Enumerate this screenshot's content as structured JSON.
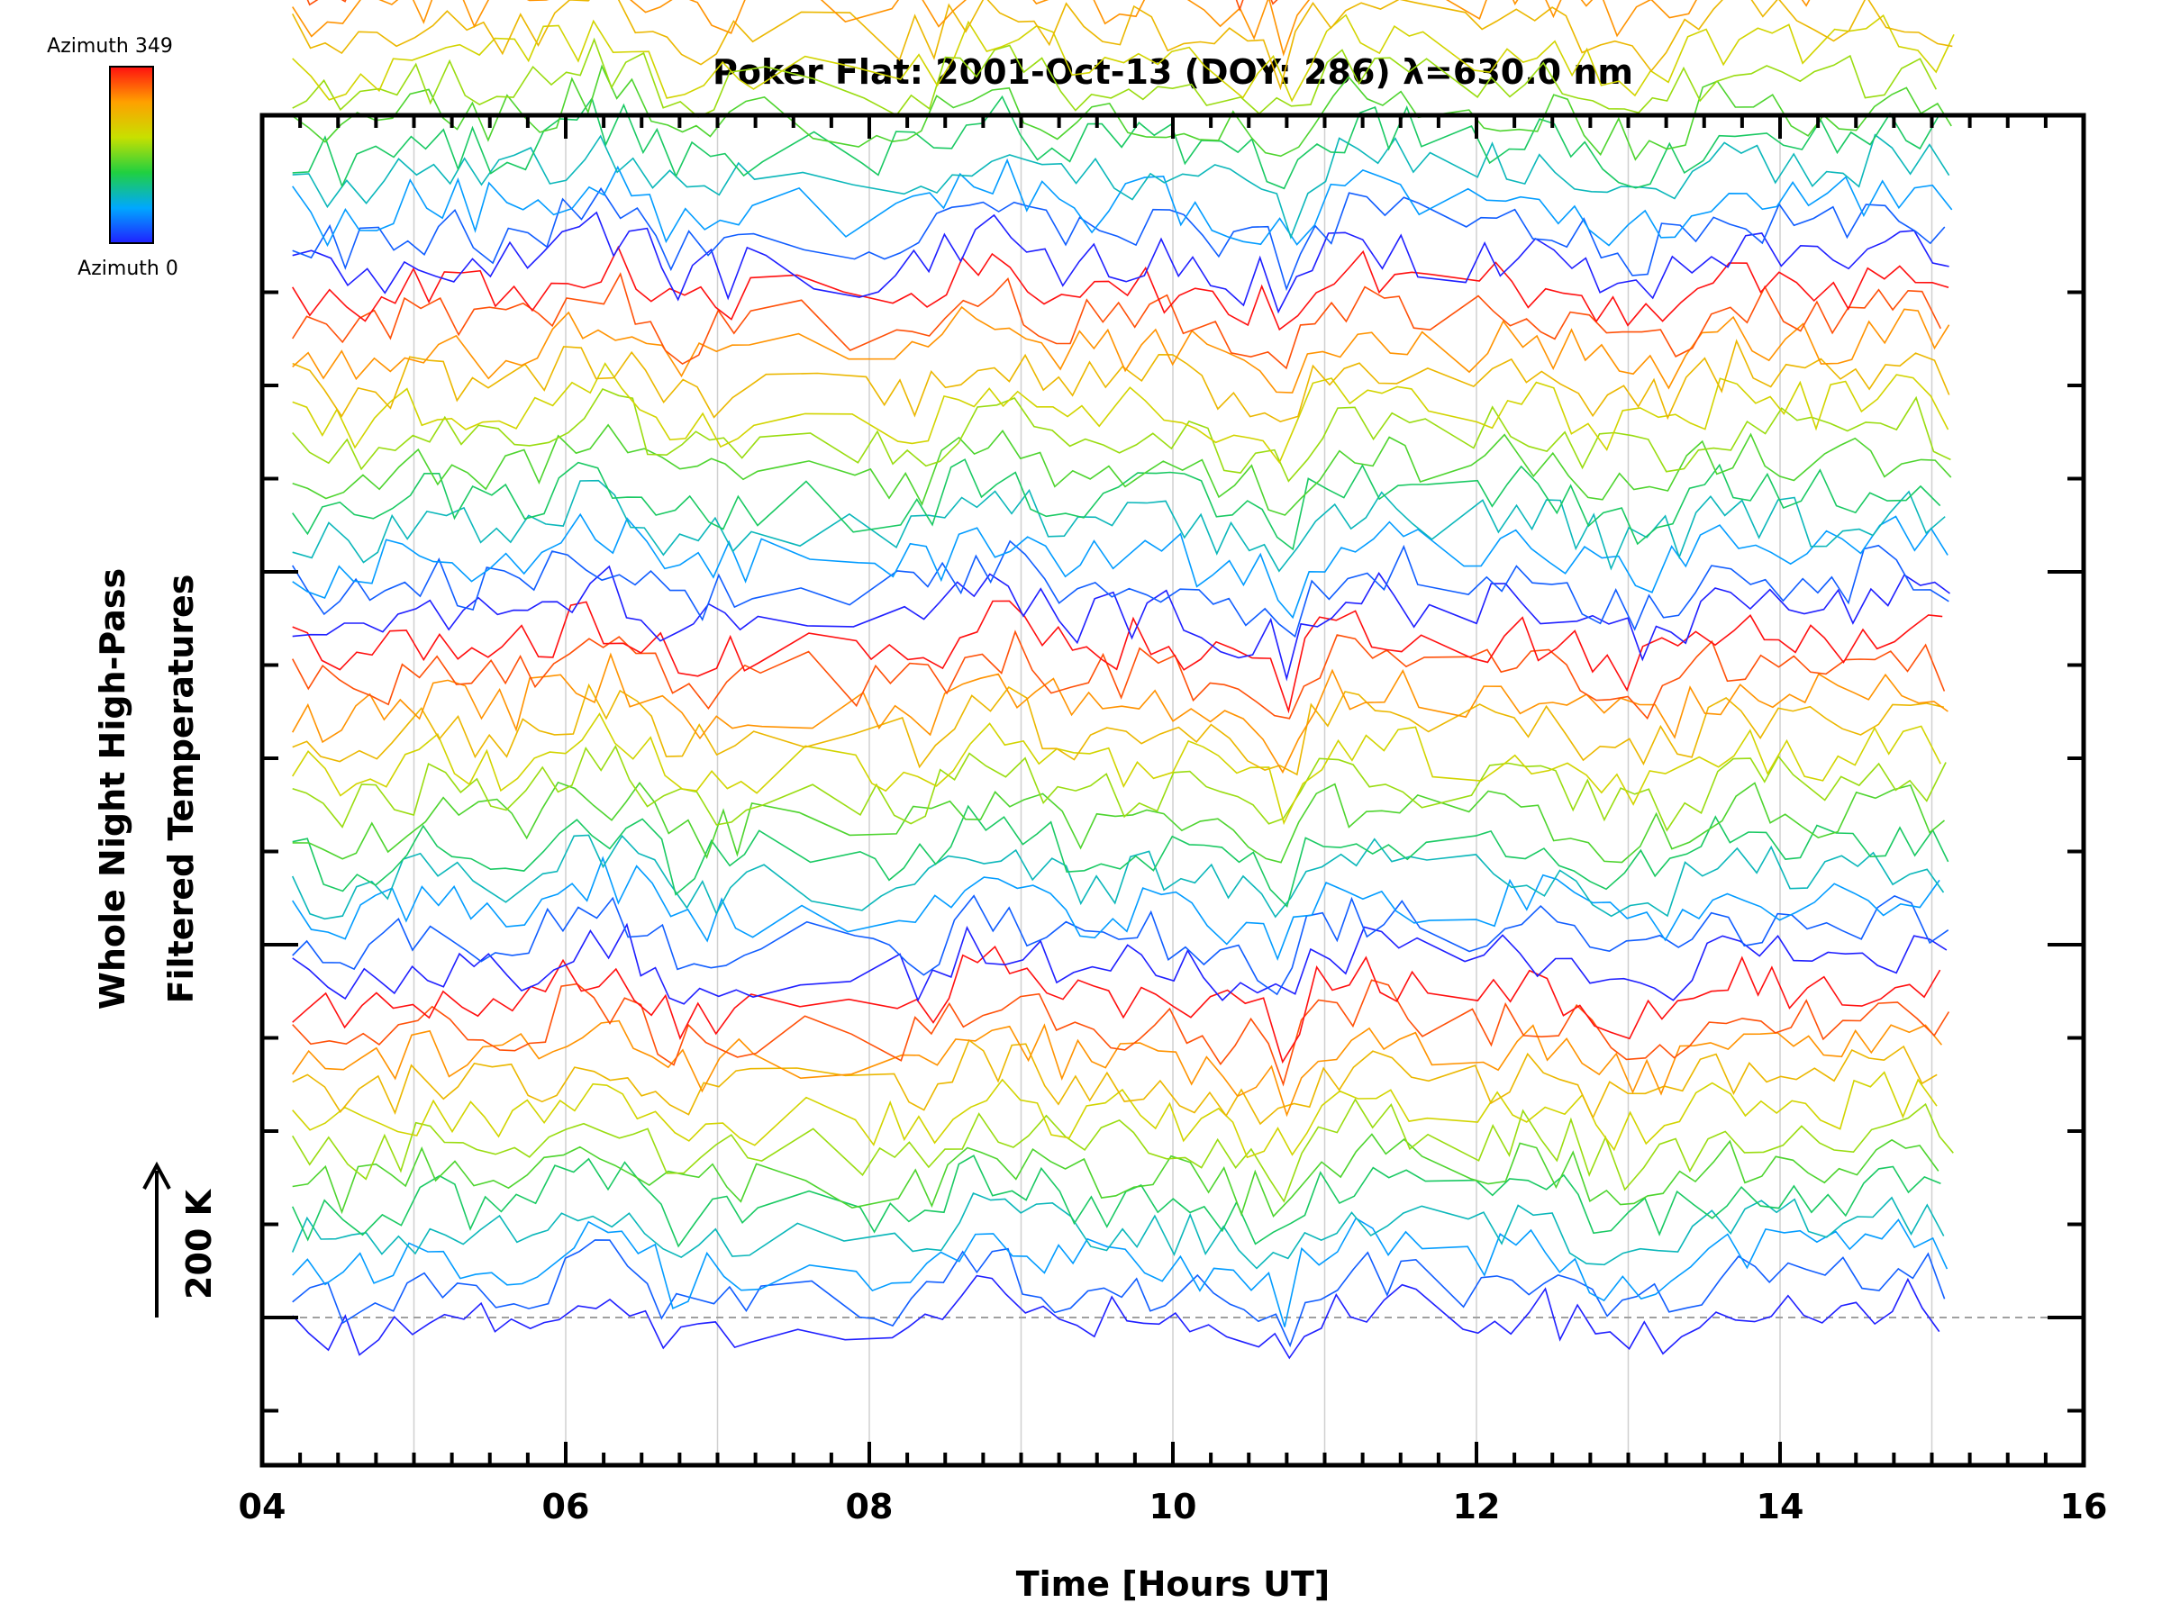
{
  "chart_data": {
    "type": "line",
    "title": "Poker Flat: 2001-Oct-13 (DOY: 286) λ=630.0 nm",
    "xlabel": "Time [Hours UT]",
    "ylabel": [
      "Whole Night High-Pass",
      "Filtered Temperatures"
    ],
    "scale_label": "200 K",
    "xlim": [
      4,
      16
    ],
    "x_ticks": [
      "04",
      "06",
      "08",
      "10",
      "12",
      "14",
      "16"
    ],
    "x_range_data": [
      4.2,
      15.15
    ],
    "grid": "vertical, every hour",
    "series_count": 48,
    "group_count": 4,
    "series_offset_K": 40,
    "colorbar": {
      "top_label": "Azimuth 349",
      "bottom_label": "Azimuth 0",
      "colors": [
        "#2020ff",
        "#00a8ff",
        "#20d040",
        "#c8e000",
        "#ffa000",
        "#ff1010"
      ]
    },
    "baseline_style": "dashed gray",
    "colors": {
      "axes": "#000000",
      "grid": "#d0d0d0",
      "baseline": "#a0a0a0"
    }
  }
}
